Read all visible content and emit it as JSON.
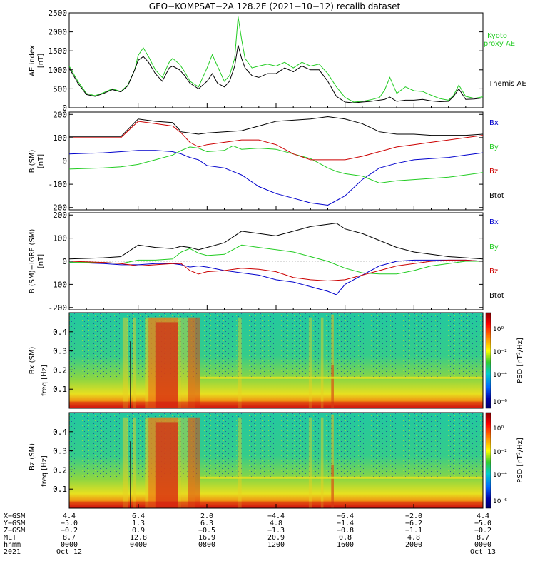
{
  "title": "GEO−KOMPSAT−2A 128.2E (2021−10−12) recalib dataset",
  "chart_data": [
    {
      "type": "line",
      "panel": "ae",
      "ylabel": [
        "AE index",
        "[nT]"
      ],
      "ylim": [
        0,
        2500
      ],
      "yticks": [
        0,
        500,
        1000,
        1500,
        2000,
        2500
      ],
      "xlim": [
        0,
        24
      ],
      "series": [
        {
          "name": "Kyoto proxy AE",
          "color": "#22cc22",
          "x": [
            0,
            0.5,
            1,
            1.5,
            2,
            2.5,
            3,
            3.4,
            3.8,
            4,
            4.3,
            4.6,
            5,
            5.4,
            5.8,
            6,
            6.4,
            6.7,
            7,
            7.5,
            8,
            8.3,
            8.6,
            9,
            9.3,
            9.6,
            9.8,
            10,
            10.2,
            10.6,
            11,
            11.5,
            12,
            12.5,
            13,
            13.5,
            14,
            14.5,
            15,
            15.5,
            16,
            16.5,
            17,
            17.5,
            18,
            18.3,
            18.6,
            19,
            19.5,
            20,
            20.5,
            21,
            21.5,
            22,
            22.3,
            22.6,
            23,
            23.5,
            24
          ],
          "values": [
            1100,
            700,
            380,
            320,
            400,
            500,
            430,
            600,
            1000,
            1380,
            1580,
            1350,
            1000,
            800,
            1200,
            1300,
            1150,
            950,
            700,
            550,
            1050,
            1400,
            1100,
            700,
            850,
            1300,
            2400,
            1800,
            1300,
            1050,
            1100,
            1150,
            1100,
            1200,
            1050,
            1200,
            1100,
            1150,
            900,
            550,
            270,
            150,
            170,
            210,
            270,
            470,
            800,
            380,
            550,
            450,
            430,
            330,
            240,
            200,
            330,
            600,
            300,
            250,
            290
          ]
        },
        {
          "name": "Themis AE",
          "color": "#000000",
          "x": [
            0,
            0.5,
            1,
            1.5,
            2,
            2.5,
            3,
            3.4,
            3.8,
            4,
            4.3,
            4.6,
            5,
            5.4,
            5.8,
            6,
            6.4,
            6.7,
            7,
            7.5,
            8,
            8.3,
            8.6,
            9,
            9.3,
            9.6,
            9.8,
            10,
            10.2,
            10.6,
            11,
            11.5,
            12,
            12.5,
            13,
            13.5,
            14,
            14.5,
            15,
            15.5,
            16,
            16.5,
            17,
            17.5,
            18,
            18.3,
            18.6,
            19,
            19.5,
            20,
            20.5,
            21,
            21.5,
            22,
            22.3,
            22.6,
            23,
            23.5,
            24
          ],
          "values": [
            1050,
            650,
            350,
            300,
            380,
            480,
            420,
            580,
            1000,
            1250,
            1350,
            1200,
            900,
            700,
            1050,
            1100,
            1000,
            850,
            650,
            500,
            700,
            900,
            650,
            550,
            700,
            1100,
            1650,
            1300,
            1050,
            850,
            800,
            900,
            900,
            1050,
            950,
            1100,
            1000,
            1000,
            700,
            300,
            150,
            130,
            150,
            170,
            200,
            220,
            280,
            170,
            200,
            200,
            220,
            180,
            160,
            170,
            300,
            500,
            220,
            230,
            260
          ]
        }
      ]
    },
    {
      "type": "line",
      "panel": "b_sm",
      "ylabel": [
        "B (SM)",
        "[nT]"
      ],
      "ylim": [
        -210,
        210
      ],
      "yticks": [
        -200,
        -100,
        0,
        100,
        200
      ],
      "xlim": [
        0,
        24
      ],
      "series": [
        {
          "name": "Bx",
          "color": "#0000cc",
          "x": [
            0,
            2,
            3,
            4,
            5,
            6,
            6.5,
            7,
            7.5,
            8,
            9,
            10,
            11,
            12,
            13,
            14,
            15,
            15.5,
            16,
            17,
            18,
            19,
            20,
            21,
            22,
            23,
            24
          ],
          "values": [
            30,
            35,
            40,
            45,
            45,
            40,
            30,
            15,
            5,
            -20,
            -30,
            -60,
            -110,
            -140,
            -160,
            -180,
            -190,
            -170,
            -150,
            -80,
            -30,
            -10,
            5,
            10,
            15,
            25,
            35
          ]
        },
        {
          "name": "By",
          "color": "#22cc22",
          "x": [
            0,
            2,
            3,
            4,
            5,
            6,
            6.5,
            7,
            7.5,
            8,
            9,
            9.5,
            10,
            11,
            12,
            13,
            14,
            15,
            15.5,
            16,
            17,
            18,
            19,
            20,
            21,
            22,
            23,
            24
          ],
          "values": [
            -35,
            -30,
            -25,
            -15,
            5,
            25,
            45,
            60,
            55,
            40,
            45,
            65,
            50,
            55,
            50,
            30,
            10,
            -30,
            -45,
            -55,
            -65,
            -95,
            -85,
            -80,
            -75,
            -70,
            -60,
            -50
          ]
        },
        {
          "name": "Bz",
          "color": "#cc0000",
          "x": [
            0,
            2,
            3,
            4,
            5,
            6,
            6.5,
            7,
            7.5,
            8,
            9,
            10,
            11,
            12,
            13,
            14,
            15,
            16,
            17,
            18,
            19,
            20,
            21,
            22,
            23,
            24
          ],
          "values": [
            100,
            100,
            100,
            170,
            160,
            150,
            120,
            80,
            60,
            70,
            80,
            90,
            90,
            70,
            30,
            5,
            5,
            5,
            20,
            40,
            60,
            70,
            80,
            90,
            100,
            110
          ]
        },
        {
          "name": "Btot",
          "color": "#000000",
          "x": [
            0,
            2,
            3,
            4,
            5,
            6,
            6.5,
            7,
            7.5,
            8,
            9,
            10,
            11,
            12,
            13,
            14,
            15,
            16,
            17,
            18,
            19,
            20,
            21,
            22,
            23,
            24
          ],
          "values": [
            105,
            105,
            105,
            180,
            170,
            165,
            125,
            120,
            115,
            120,
            125,
            130,
            150,
            170,
            175,
            180,
            190,
            180,
            160,
            125,
            115,
            115,
            110,
            110,
            110,
            115
          ]
        }
      ]
    },
    {
      "type": "line",
      "panel": "b_minus_igrf",
      "ylabel": [
        "B (SM)−IGRF (SM)",
        "[nT]"
      ],
      "ylim": [
        -210,
        210
      ],
      "yticks": [
        -200,
        -100,
        0,
        100,
        200
      ],
      "xlim": [
        0,
        24
      ],
      "series": [
        {
          "name": "Bx",
          "color": "#0000cc",
          "x": [
            0,
            2,
            3,
            4,
            5,
            6,
            6.5,
            7,
            7.5,
            8,
            9,
            10,
            11,
            12,
            13,
            14,
            15,
            15.5,
            16,
            17,
            18,
            19,
            20,
            21,
            22,
            23,
            24
          ],
          "values": [
            -5,
            -10,
            -15,
            -15,
            -10,
            -10,
            -15,
            -25,
            -20,
            -25,
            -40,
            -50,
            -60,
            -80,
            -90,
            -110,
            -130,
            -145,
            -100,
            -60,
            -20,
            0,
            5,
            5,
            5,
            5,
            0
          ]
        },
        {
          "name": "By",
          "color": "#22cc22",
          "x": [
            0,
            2,
            3,
            4,
            5,
            6,
            6.5,
            7,
            7.5,
            8,
            9,
            10,
            11,
            12,
            13,
            14,
            15,
            16,
            17,
            18,
            19,
            20,
            21,
            22,
            23,
            24
          ],
          "values": [
            -5,
            -5,
            -10,
            5,
            5,
            10,
            40,
            55,
            35,
            25,
            30,
            70,
            60,
            50,
            40,
            20,
            0,
            -30,
            -50,
            -55,
            -55,
            -40,
            -20,
            -10,
            0,
            0
          ]
        },
        {
          "name": "Bz",
          "color": "#cc0000",
          "x": [
            0,
            2,
            3,
            4,
            5,
            6,
            6.5,
            7,
            7.5,
            8,
            9,
            10,
            11,
            12,
            13,
            14,
            15,
            16,
            17,
            18,
            19,
            20,
            21,
            22,
            23,
            24
          ],
          "values": [
            0,
            -5,
            -10,
            -20,
            -15,
            -10,
            -10,
            -40,
            -55,
            -45,
            -40,
            -30,
            -35,
            -45,
            -70,
            -80,
            -85,
            -80,
            -60,
            -40,
            -20,
            -10,
            0,
            5,
            5,
            0
          ]
        },
        {
          "name": "Btot",
          "color": "#000000",
          "x": [
            0,
            2,
            3,
            4,
            5,
            6,
            6.5,
            7,
            7.5,
            8,
            9,
            10,
            11,
            12,
            13,
            14,
            15,
            15.5,
            16,
            17,
            18,
            19,
            20,
            21,
            22,
            23,
            24
          ],
          "values": [
            10,
            15,
            20,
            70,
            60,
            55,
            65,
            60,
            50,
            60,
            80,
            130,
            120,
            110,
            130,
            150,
            160,
            165,
            140,
            120,
            90,
            60,
            40,
            30,
            20,
            15,
            10
          ]
        }
      ]
    },
    {
      "type": "heatmap",
      "panel": "bx_psd",
      "ylabel": [
        "Bx (SM)",
        "freq [Hz]"
      ],
      "ylim": [
        0,
        0.5
      ],
      "yticks": [
        0.1,
        0.2,
        0.3,
        0.4
      ],
      "colorbar": {
        "label": "PSD [nT²/Hz]",
        "ticks": [
          "10⁰",
          "10⁻²",
          "10⁻⁴",
          "10⁻⁶"
        ]
      }
    },
    {
      "type": "heatmap",
      "panel": "bz_psd",
      "ylabel": [
        "Bz (SM)",
        "freq [Hz]"
      ],
      "ylim": [
        0,
        0.5
      ],
      "yticks": [
        0.1,
        0.2,
        0.3,
        0.4
      ],
      "colorbar": {
        "label": "PSD [nT²/Hz]",
        "ticks": [
          "10⁰",
          "10⁻²",
          "10⁻⁴",
          "10⁻⁶"
        ]
      }
    }
  ],
  "legend": {
    "ae": [
      "Kyoto",
      "proxy AE",
      "Themis AE"
    ],
    "b": [
      "Bx",
      "By",
      "Bz",
      "Btot"
    ]
  },
  "xaxis": {
    "row_labels": [
      "X−GSM",
      "Y−GSM",
      "Z−GSM",
      "MLT",
      "hhmm",
      "2021"
    ],
    "columns": [
      [
        "4.4",
        "−5.0",
        "−0.2",
        "8.7",
        "0000",
        "Oct 12"
      ],
      [
        "6.4",
        "1.3",
        "0.9",
        "12.8",
        "0400",
        ""
      ],
      [
        "2.0",
        "6.3",
        "−0.5",
        "16.9",
        "0800",
        ""
      ],
      [
        "−4.4",
        "4.8",
        "−1.3",
        "20.9",
        "1200",
        ""
      ],
      [
        "−6.4",
        "−1.4",
        "−0.8",
        "0.8",
        "1600",
        ""
      ],
      [
        "−2.0",
        "−6.2",
        "−1.1",
        "4.8",
        "2000",
        ""
      ],
      [
        "4.4",
        "−5.0",
        "−0.2",
        "8.7",
        "0000",
        "Oct 13"
      ]
    ]
  }
}
